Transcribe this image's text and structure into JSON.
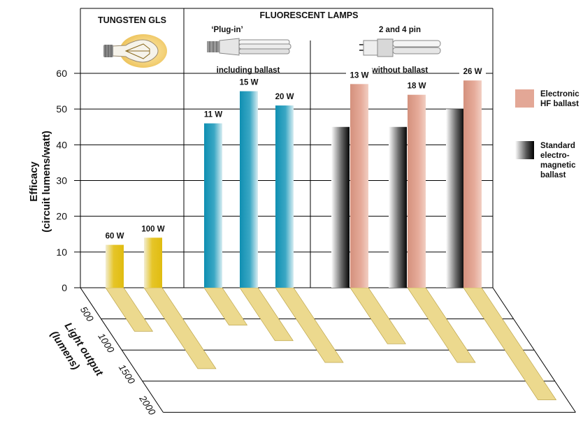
{
  "chart_data": {
    "type": "bar",
    "ylabel": [
      "Efficacy",
      "(circuit lumens/watt)"
    ],
    "zlabel": [
      "Light output",
      "(lumens)"
    ],
    "ylim": [
      0,
      60
    ],
    "y_ticks": [
      "0",
      "10",
      "20",
      "30",
      "40",
      "50",
      "60"
    ],
    "zlim": [
      0,
      2000
    ],
    "z_ticks": [
      "500",
      "1000",
      "1500",
      "2000"
    ],
    "groups": [
      {
        "title": "TUNGSTEN GLS",
        "subtitle_top": "",
        "subtitle_bottom": ""
      },
      {
        "title": "FLUORESCENT LAMPS",
        "subtitle_top": "‘Plug-in’",
        "subtitle_bottom": "including ballast"
      },
      {
        "title": "",
        "subtitle_top": "2 and 4 pin",
        "subtitle_bottom": "without ballast"
      }
    ],
    "series": [
      {
        "name": "Electronic HF ballast",
        "legend_lines": [
          "Electronic",
          "HF ballast"
        ],
        "color": "#e3a796"
      },
      {
        "name": "Standard electro-magnetic ballast",
        "legend_lines": [
          "Standard",
          "electro-",
          "magnetic",
          "ballast"
        ],
        "color": "#111111"
      }
    ],
    "bars": [
      {
        "label": "60 W",
        "efficacy": 12,
        "light_output": 700,
        "kind": "tungsten"
      },
      {
        "label": "100 W",
        "efficacy": 14,
        "light_output": 1300,
        "kind": "tungsten"
      },
      {
        "label": "11 W",
        "efficacy": 46,
        "light_output": 600,
        "kind": "plugin"
      },
      {
        "label": "15 W",
        "efficacy": 55,
        "light_output": 850,
        "kind": "plugin"
      },
      {
        "label": "20 W",
        "efficacy": 51,
        "light_output": 1200,
        "kind": "plugin"
      },
      {
        "label": "",
        "efficacy": 45,
        "light_output": 0,
        "kind": "standard"
      },
      {
        "label": "13 W",
        "efficacy": 57,
        "light_output": 900,
        "kind": "electronic"
      },
      {
        "label": "",
        "efficacy": 45,
        "light_output": 0,
        "kind": "standard"
      },
      {
        "label": "18 W",
        "efficacy": 54,
        "light_output": 1200,
        "kind": "electronic"
      },
      {
        "label": "",
        "efficacy": 50,
        "light_output": 0,
        "kind": "standard"
      },
      {
        "label": "26 W",
        "efficacy": 58,
        "light_output": 1800,
        "kind": "electronic"
      }
    ]
  }
}
